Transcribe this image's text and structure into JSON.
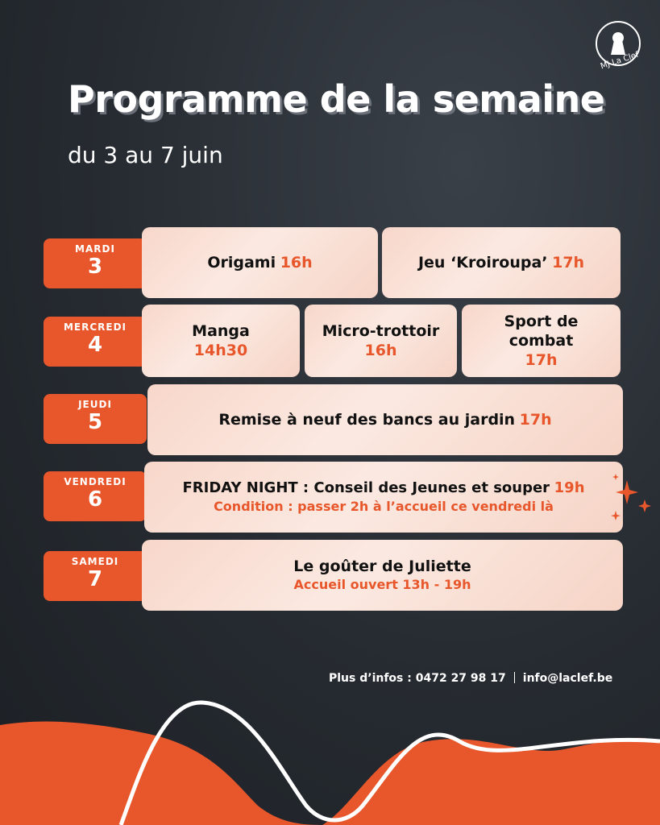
{
  "logo": {
    "text": "MJ La Clef"
  },
  "header": {
    "title": "Programme de la semaine",
    "subtitle": "du 3 au 7 juin"
  },
  "days": [
    {
      "name": "MARDI",
      "number": "3",
      "events": [
        {
          "title": "Origami",
          "time": "16h"
        },
        {
          "title": "Jeu ‘Kroiroupa’",
          "time": "17h"
        }
      ]
    },
    {
      "name": "MERCREDI",
      "number": "4",
      "events": [
        {
          "title": "Manga",
          "time": "14h30"
        },
        {
          "title": "Micro-trottoir",
          "time": "16h"
        },
        {
          "title_line1": "Sport de",
          "title_line2": "combat",
          "time": "17h"
        }
      ]
    },
    {
      "name": "JEUDI",
      "number": "5",
      "events": [
        {
          "title": "Remise à neuf des bancs au jardin",
          "time": "17h"
        }
      ]
    },
    {
      "name": "VENDREDI",
      "number": "6",
      "events": [
        {
          "title": "FRIDAY NIGHT : Conseil des Jeunes et souper",
          "time": "19h",
          "note": "Condition : passer 2h à l’accueil ce vendredi là"
        }
      ]
    },
    {
      "name": "SAMEDI",
      "number": "7",
      "events": [
        {
          "title": "Le goûter de Juliette",
          "note": "Accueil ouvert 13h - 19h"
        }
      ]
    }
  ],
  "footer": {
    "phone": "Plus d’infos : 0472 27 98 17",
    "email": "info@laclef.be"
  },
  "colors": {
    "accent": "#e8572b",
    "background": "#262b31",
    "card": "#f9ded3"
  }
}
